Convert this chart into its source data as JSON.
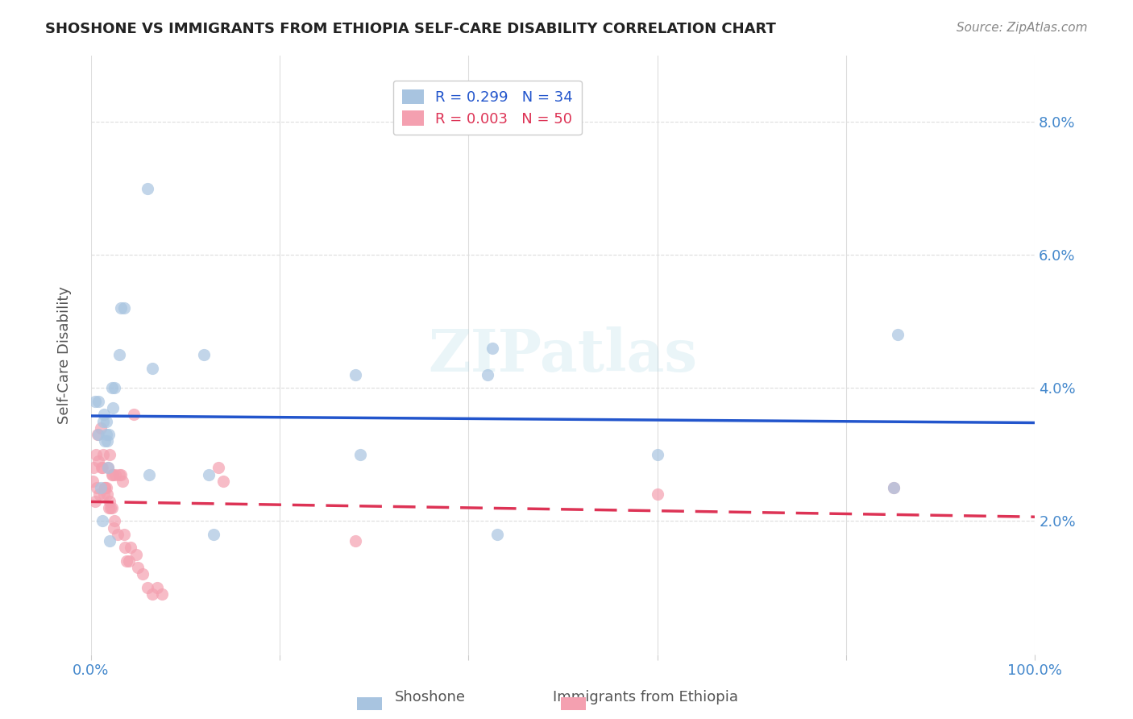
{
  "title": "SHOSHONE VS IMMIGRANTS FROM ETHIOPIA SELF-CARE DISABILITY CORRELATION CHART",
  "source": "Source: ZipAtlas.com",
  "ylabel": "Self-Care Disability",
  "xlabel": "",
  "xlim": [
    0,
    1.0
  ],
  "ylim": [
    0,
    0.09
  ],
  "xticks": [
    0.0,
    0.2,
    0.4,
    0.6,
    0.8,
    1.0
  ],
  "xtick_labels": [
    "0.0%",
    "",
    "",
    "",
    "",
    "100.0%"
  ],
  "yticks_right": [
    0.02,
    0.04,
    0.06,
    0.08
  ],
  "ytick_labels_right": [
    "2.0%",
    "4.0%",
    "6.0%",
    "8.0%"
  ],
  "shoshone_color": "#a8c4e0",
  "ethiopia_color": "#f4a0b0",
  "shoshone_line_color": "#2255cc",
  "ethiopia_line_color": "#dd3355",
  "R_shoshone": 0.299,
  "N_shoshone": 34,
  "R_ethiopia": 0.003,
  "N_ethiopia": 50,
  "shoshone_x": [
    0.004,
    0.008,
    0.008,
    0.01,
    0.012,
    0.013,
    0.014,
    0.015,
    0.016,
    0.016,
    0.017,
    0.018,
    0.019,
    0.02,
    0.022,
    0.023,
    0.025,
    0.03,
    0.032,
    0.035,
    0.06,
    0.062,
    0.065,
    0.12,
    0.125,
    0.13,
    0.28,
    0.285,
    0.42,
    0.425,
    0.43,
    0.6,
    0.85,
    0.855
  ],
  "shoshone_y": [
    0.038,
    0.033,
    0.038,
    0.025,
    0.02,
    0.035,
    0.036,
    0.032,
    0.033,
    0.035,
    0.032,
    0.028,
    0.033,
    0.017,
    0.04,
    0.037,
    0.04,
    0.045,
    0.052,
    0.052,
    0.07,
    0.027,
    0.043,
    0.045,
    0.027,
    0.018,
    0.042,
    0.03,
    0.042,
    0.046,
    0.018,
    0.03,
    0.025,
    0.048
  ],
  "ethiopia_x": [
    0.002,
    0.003,
    0.004,
    0.005,
    0.006,
    0.007,
    0.008,
    0.009,
    0.01,
    0.011,
    0.012,
    0.013,
    0.014,
    0.015,
    0.015,
    0.016,
    0.017,
    0.018,
    0.019,
    0.02,
    0.02,
    0.021,
    0.022,
    0.022,
    0.023,
    0.024,
    0.025,
    0.026,
    0.028,
    0.03,
    0.032,
    0.033,
    0.035,
    0.036,
    0.038,
    0.04,
    0.042,
    0.045,
    0.048,
    0.05,
    0.055,
    0.06,
    0.065,
    0.07,
    0.075,
    0.135,
    0.14,
    0.28,
    0.6,
    0.85
  ],
  "ethiopia_y": [
    0.026,
    0.028,
    0.023,
    0.03,
    0.025,
    0.033,
    0.029,
    0.024,
    0.034,
    0.028,
    0.028,
    0.03,
    0.024,
    0.025,
    0.025,
    0.025,
    0.024,
    0.028,
    0.022,
    0.023,
    0.03,
    0.022,
    0.022,
    0.027,
    0.027,
    0.019,
    0.02,
    0.027,
    0.018,
    0.027,
    0.027,
    0.026,
    0.018,
    0.016,
    0.014,
    0.014,
    0.016,
    0.036,
    0.015,
    0.013,
    0.012,
    0.01,
    0.009,
    0.01,
    0.009,
    0.028,
    0.026,
    0.017,
    0.024,
    0.025
  ],
  "background_color": "#ffffff",
  "grid_color": "#dddddd",
  "watermark": "ZIPatlas"
}
